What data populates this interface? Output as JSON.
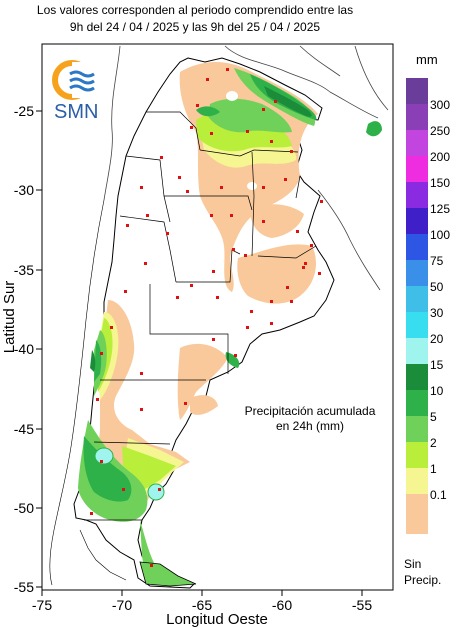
{
  "header": {
    "line1": "Los valores corresponden al periodo comprendido entre las",
    "line2": "9h del 24 / 04 / 2025  y las 9h del 25 / 04 / 2025"
  },
  "logo": {
    "text": "SMN",
    "icon": "smn-sun-waves-logo"
  },
  "axes": {
    "x_title": "Longitud Oeste",
    "y_title": "Latitud Sur",
    "x_ticks": [
      "-75",
      "-70",
      "-65",
      "-60",
      "-55"
    ],
    "y_ticks": [
      "-25",
      "-30",
      "-35",
      "-40",
      "-45",
      "-50",
      "-55"
    ]
  },
  "annotation": {
    "line1": "Precipitación acumulada",
    "line2": "en 24h (mm)"
  },
  "legend": {
    "unit": "mm",
    "no_precip_line1": "Sin",
    "no_precip_line2": "Precip.",
    "items": [
      {
        "label": "300",
        "color": "#6a3d9a"
      },
      {
        "label": "250",
        "color": "#8a3fb7"
      },
      {
        "label": "200",
        "color": "#c245e0"
      },
      {
        "label": "150",
        "color": "#ee2ce0"
      },
      {
        "label": "125",
        "color": "#8a2be2"
      },
      {
        "label": "100",
        "color": "#3e1fc8"
      },
      {
        "label": "75",
        "color": "#2d56e4"
      },
      {
        "label": "50",
        "color": "#3a8fe8"
      },
      {
        "label": "30",
        "color": "#3fbfe8"
      },
      {
        "label": "20",
        "color": "#38def0"
      },
      {
        "label": "15",
        "color": "#9ff5ee"
      },
      {
        "label": "10",
        "color": "#1b8c3a"
      },
      {
        "label": "5",
        "color": "#2fb14a"
      },
      {
        "label": "2",
        "color": "#6fd15a"
      },
      {
        "label": "1",
        "color": "#b9ee3a"
      },
      {
        "label": "0.1",
        "color": "#f5f592"
      },
      {
        "label": "",
        "color": "#f9c99b"
      }
    ]
  }
}
